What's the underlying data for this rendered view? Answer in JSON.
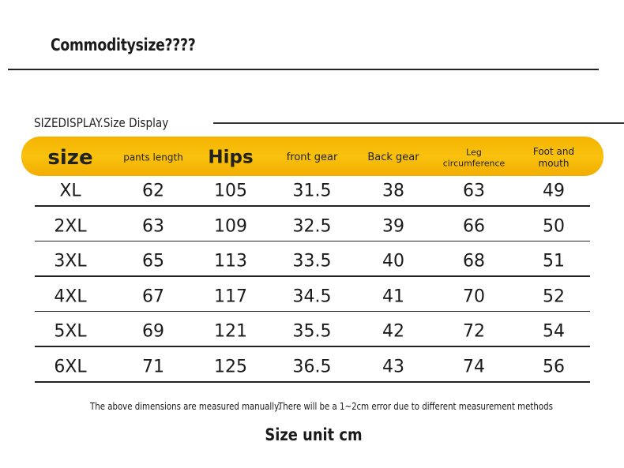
{
  "header": {
    "title": "Commoditysize????"
  },
  "section": {
    "title": "SIZEDISPLAY.Size Display"
  },
  "table": {
    "headers": [
      "size",
      "pants length",
      "Hips",
      "front gear",
      "Back gear",
      "Leg circumference",
      "Foot and mouth"
    ],
    "rows": [
      [
        "XL",
        62,
        105,
        31.5,
        38,
        63,
        49
      ],
      [
        "2XL",
        63,
        109,
        32.5,
        39,
        66,
        50
      ],
      [
        "3XL",
        65,
        113,
        33.5,
        40,
        68,
        51
      ],
      [
        "4XL",
        67,
        117,
        34.5,
        41,
        70,
        52
      ],
      [
        "5XL",
        69,
        121,
        35.5,
        42,
        72,
        54
      ],
      [
        "6XL",
        71,
        125,
        36.5,
        43,
        74,
        56
      ]
    ]
  },
  "notes": [
    "The above dimensions are measured manually.",
    "There will be a 1~2cm error due to different measurement methods"
  ],
  "footer": {
    "unit": "Size unit cm"
  }
}
